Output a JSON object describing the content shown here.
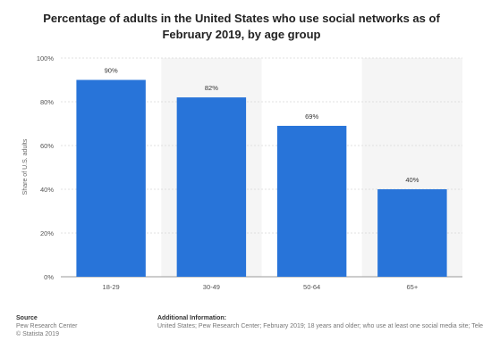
{
  "chart_data": {
    "type": "bar",
    "title": "Percentage of adults in the United States who use social networks as of February 2019, by age group",
    "ylabel": "Share of U.S. adults",
    "xlabel": "",
    "categories": [
      "18-29",
      "30-49",
      "50-64",
      "65+"
    ],
    "values": [
      90,
      82,
      69,
      40
    ],
    "data_labels": [
      "90%",
      "82%",
      "69%",
      "40%"
    ],
    "ylim": [
      0,
      100
    ],
    "yticks": [
      0,
      20,
      40,
      60,
      80,
      100
    ],
    "ytick_labels": [
      "0%",
      "20%",
      "40%",
      "60%",
      "80%",
      "100%"
    ],
    "grid": true,
    "bar_color": "#2874d9",
    "band_color": "#f5f5f5"
  },
  "footer": {
    "source_heading": "Source",
    "source_lines": [
      "Pew Research Center",
      "© Statista 2019"
    ],
    "additional_heading": "Additional Information:",
    "additional_text": "United States; Pew Research Center; February 2019; 18 years and older; who use at least one social media site; Telepho"
  }
}
